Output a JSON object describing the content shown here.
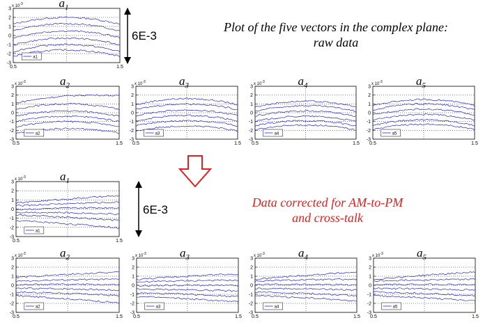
{
  "captions": {
    "raw_line1": "Plot of the five vectors in the complex plane:",
    "raw_line2": "raw data",
    "corr_line1": "Data corrected for AM-to-PM",
    "corr_line2": "and cross-talk"
  },
  "scale_labels": {
    "top": "6E-3",
    "bottom": "6E-3"
  },
  "colors": {
    "trace": "#2222dd",
    "caption_red": "#e02020",
    "arrow": "#e02020"
  },
  "chart_data": [
    {
      "id": "raw-a1",
      "type": "line",
      "title": "a",
      "subscript": "1",
      "legend": "a1",
      "exponent": "x 10",
      "exp_power": "-3",
      "xlim": [
        0.5,
        1.5
      ],
      "ylim": [
        -3,
        3
      ],
      "x_ticks": [
        "0.5",
        "1.5"
      ],
      "y_ticks": [
        "3",
        "2",
        "1",
        "0",
        "-1",
        "-2",
        "-3"
      ],
      "curves": [
        {
          "mid": 2.0,
          "bow": 1.5,
          "slope": 0.0
        },
        {
          "mid": 1.3,
          "bow": 1.6,
          "slope": 0.0
        },
        {
          "mid": 0.5,
          "bow": 1.5,
          "slope": 0.0
        },
        {
          "mid": -0.3,
          "bow": 1.5,
          "slope": 0.0
        },
        {
          "mid": -1.0,
          "bow": 1.6,
          "slope": 0.0
        },
        {
          "mid": -1.6,
          "bow": 1.4,
          "slope": 0.0
        }
      ]
    },
    {
      "id": "raw-a2",
      "type": "line",
      "title": "a",
      "subscript": "2",
      "legend": "a2",
      "exponent": "x 10",
      "exp_power": "-3",
      "xlim": [
        0.5,
        1.5
      ],
      "ylim": [
        -3,
        3
      ],
      "x_ticks": [
        "0.5",
        "1.5"
      ],
      "y_ticks": [
        "3",
        "2",
        "1",
        "0",
        "-1",
        "-2",
        "-3"
      ],
      "curves": [
        {
          "mid": 1.9,
          "bow": 0.8,
          "slope": 0.4
        },
        {
          "mid": 1.0,
          "bow": 1.2,
          "slope": 0.0
        },
        {
          "mid": 0.2,
          "bow": 1.2,
          "slope": 0.0
        },
        {
          "mid": -0.4,
          "bow": 1.2,
          "slope": 0.0
        },
        {
          "mid": -1.0,
          "bow": 1.2,
          "slope": 0.0
        },
        {
          "mid": -1.8,
          "bow": 1.0,
          "slope": 0.0
        }
      ]
    },
    {
      "id": "raw-a3",
      "type": "line",
      "title": "a",
      "subscript": "3",
      "legend": "a3",
      "exponent": "x 10",
      "exp_power": "-3",
      "xlim": [
        0.5,
        1.5
      ],
      "ylim": [
        -3,
        3
      ],
      "x_ticks": [
        "0.5",
        "1.5"
      ],
      "y_ticks": [
        "3",
        "2",
        "1",
        "0",
        "-1",
        "-2",
        "-3"
      ],
      "curves": [
        {
          "mid": 1.6,
          "bow": 1.4,
          "slope": 0.0
        },
        {
          "mid": 1.0,
          "bow": 1.3,
          "slope": 0.0
        },
        {
          "mid": 0.3,
          "bow": 1.3,
          "slope": 0.0
        },
        {
          "mid": -0.3,
          "bow": 1.3,
          "slope": 0.0
        },
        {
          "mid": -0.9,
          "bow": 1.2,
          "slope": 0.0
        },
        {
          "mid": -1.5,
          "bow": 1.2,
          "slope": 0.0
        }
      ]
    },
    {
      "id": "raw-a4",
      "type": "line",
      "title": "a",
      "subscript": "4",
      "legend": "a4",
      "exponent": "x 10",
      "exp_power": "-3",
      "xlim": [
        0.5,
        1.5
      ],
      "ylim": [
        -3,
        3
      ],
      "x_ticks": [
        "0.5",
        "1.5"
      ],
      "y_ticks": [
        "3",
        "2",
        "1",
        "0",
        "-1",
        "-2",
        "-3"
      ],
      "curves": [
        {
          "mid": 1.3,
          "bow": 1.3,
          "slope": 0.0
        },
        {
          "mid": 0.8,
          "bow": 1.3,
          "slope": 0.0
        },
        {
          "mid": 0.2,
          "bow": 1.2,
          "slope": 0.0
        },
        {
          "mid": -0.4,
          "bow": 1.2,
          "slope": 0.0
        },
        {
          "mid": -0.9,
          "bow": 1.2,
          "slope": 0.0
        },
        {
          "mid": -1.4,
          "bow": 1.1,
          "slope": 0.0
        }
      ]
    },
    {
      "id": "raw-a5",
      "type": "line",
      "title": "a",
      "subscript": "5",
      "legend": "a5",
      "exponent": "x 10",
      "exp_power": "-3",
      "xlim": [
        0.5,
        1.5
      ],
      "ylim": [
        -3,
        3
      ],
      "x_ticks": [
        "0.5",
        "1.5"
      ],
      "y_ticks": [
        "3",
        "2",
        "1",
        "0",
        "-1",
        "-2",
        "-3"
      ],
      "curves": [
        {
          "mid": 1.5,
          "bow": 1.4,
          "slope": 0.0
        },
        {
          "mid": 1.0,
          "bow": 1.4,
          "slope": 0.0
        },
        {
          "mid": 0.4,
          "bow": 1.3,
          "slope": 0.0
        },
        {
          "mid": -0.2,
          "bow": 1.3,
          "slope": 0.0
        },
        {
          "mid": -0.8,
          "bow": 1.3,
          "slope": 0.0
        },
        {
          "mid": -1.3,
          "bow": 1.2,
          "slope": 0.0
        }
      ]
    },
    {
      "id": "corr-a1",
      "type": "line",
      "title": "a",
      "subscript": "1",
      "legend": "a1",
      "exponent": "x 10",
      "exp_power": "-3",
      "xlim": [
        0.5,
        1.5
      ],
      "ylim": [
        -3,
        3
      ],
      "x_ticks": [
        "0.5",
        "1.5"
      ],
      "y_ticks": [
        "3",
        "2",
        "1",
        "0",
        "-1",
        "-2",
        "-3"
      ],
      "curves": [
        {
          "mid": 1.1,
          "bow": 0.1,
          "slope": 0.4
        },
        {
          "mid": 0.6,
          "bow": 0.1,
          "slope": 0.2
        },
        {
          "mid": 0.1,
          "bow": 0.1,
          "slope": 0.1
        },
        {
          "mid": -0.4,
          "bow": 0.1,
          "slope": -0.1
        },
        {
          "mid": -0.9,
          "bow": 0.1,
          "slope": -0.3
        },
        {
          "mid": -1.6,
          "bow": 0.1,
          "slope": -0.4
        }
      ]
    },
    {
      "id": "corr-a2",
      "type": "line",
      "title": "a",
      "subscript": "2",
      "legend": "a2",
      "exponent": "x 10",
      "exp_power": "-3",
      "xlim": [
        0.5,
        1.5
      ],
      "ylim": [
        -3,
        3
      ],
      "x_ticks": [
        "0.5",
        "1.5"
      ],
      "y_ticks": [
        "3",
        "2",
        "1",
        "0",
        "-1",
        "-2",
        "-3"
      ],
      "curves": [
        {
          "mid": 1.2,
          "bow": 0.1,
          "slope": 0.3
        },
        {
          "mid": 0.6,
          "bow": 0.1,
          "slope": 0.1
        },
        {
          "mid": 0.1,
          "bow": 0.1,
          "slope": 0.0
        },
        {
          "mid": -0.4,
          "bow": 0.1,
          "slope": -0.1
        },
        {
          "mid": -0.9,
          "bow": 0.1,
          "slope": -0.2
        },
        {
          "mid": -1.5,
          "bow": 0.1,
          "slope": -0.4
        }
      ]
    },
    {
      "id": "corr-a3",
      "type": "line",
      "title": "a",
      "subscript": "3",
      "legend": "a3",
      "exponent": "x 10",
      "exp_power": "-3",
      "xlim": [
        0.5,
        1.5
      ],
      "ylim": [
        -3,
        3
      ],
      "x_ticks": [
        "0.5",
        "1.5"
      ],
      "y_ticks": [
        "3",
        "2",
        "1",
        "0",
        "-1",
        "-2",
        "-3"
      ],
      "curves": [
        {
          "mid": 1.0,
          "bow": 0.1,
          "slope": 0.3
        },
        {
          "mid": 0.5,
          "bow": 0.1,
          "slope": 0.1
        },
        {
          "mid": 0.0,
          "bow": 0.1,
          "slope": 0.0
        },
        {
          "mid": -0.5,
          "bow": 0.1,
          "slope": -0.1
        },
        {
          "mid": -1.0,
          "bow": 0.1,
          "slope": -0.2
        },
        {
          "mid": -1.5,
          "bow": 0.1,
          "slope": -0.3
        }
      ]
    },
    {
      "id": "corr-a4",
      "type": "line",
      "title": "a",
      "subscript": "4",
      "legend": "a4",
      "exponent": "x 10",
      "exp_power": "-3",
      "xlim": [
        0.5,
        1.5
      ],
      "ylim": [
        -3,
        3
      ],
      "x_ticks": [
        "0.5",
        "1.5"
      ],
      "y_ticks": [
        "3",
        "2",
        "1",
        "0",
        "-1",
        "-2",
        "-3"
      ],
      "curves": [
        {
          "mid": 1.1,
          "bow": 0.1,
          "slope": 0.4
        },
        {
          "mid": 0.6,
          "bow": 0.1,
          "slope": 0.1
        },
        {
          "mid": 0.1,
          "bow": 0.1,
          "slope": 0.0
        },
        {
          "mid": -0.4,
          "bow": 0.1,
          "slope": -0.1
        },
        {
          "mid": -0.9,
          "bow": 0.1,
          "slope": -0.2
        },
        {
          "mid": -1.4,
          "bow": 0.1,
          "slope": -0.3
        }
      ]
    },
    {
      "id": "corr-a5",
      "type": "line",
      "title": "a",
      "subscript": "5",
      "legend": "a5",
      "exponent": "x 10",
      "exp_power": "-3",
      "xlim": [
        0.5,
        1.5
      ],
      "ylim": [
        -3,
        3
      ],
      "x_ticks": [
        "0.5",
        "1.5"
      ],
      "y_ticks": [
        "3",
        "2",
        "1",
        "0",
        "-1",
        "-2",
        "-3"
      ],
      "curves": [
        {
          "mid": 1.1,
          "bow": 0.1,
          "slope": 0.4
        },
        {
          "mid": 0.6,
          "bow": 0.1,
          "slope": 0.1
        },
        {
          "mid": 0.1,
          "bow": 0.1,
          "slope": 0.0
        },
        {
          "mid": -0.4,
          "bow": 0.1,
          "slope": -0.1
        },
        {
          "mid": -0.9,
          "bow": 0.1,
          "slope": -0.2
        },
        {
          "mid": -1.4,
          "bow": 0.1,
          "slope": -0.3
        }
      ]
    }
  ]
}
